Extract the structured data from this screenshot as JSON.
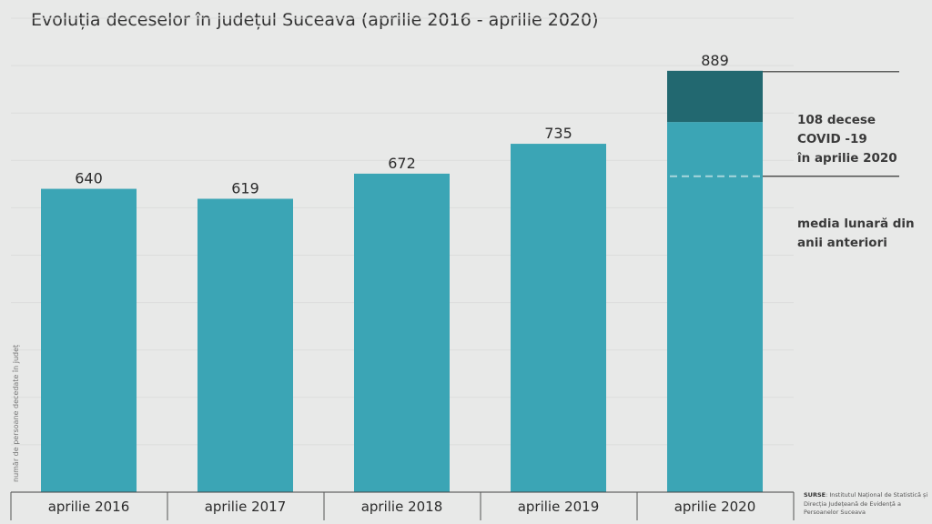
{
  "title": "Evoluția deceselor în județul Suceava (aprilie 2016 - aprilie 2020)",
  "chart_data": {
    "type": "bar",
    "categories": [
      "aprilie 2016",
      "aprilie 2017",
      "aprilie 2018",
      "aprilie 2019",
      "aprilie 2020"
    ],
    "values": [
      640,
      619,
      672,
      735,
      889
    ],
    "stacked_segment": {
      "category": "aprilie 2020",
      "value": 108,
      "label": "108 decese COVID -19 în aprilie 2020"
    },
    "reference_line": {
      "value": 666.5,
      "label": "media lunară din anii anteriori",
      "style": "dashed"
    },
    "ylabel": "număr de persoane decedate în județ",
    "ylim": [
      0,
      1000
    ],
    "grid": true,
    "colors": {
      "bar": "#3ba5b5",
      "covid": "#226870",
      "background": "#e8e9e8",
      "mean_line": "#a8d6dc"
    }
  },
  "annotations": {
    "covid_lines": [
      "108 decese",
      "COVID -19",
      "în aprilie 2020"
    ],
    "mean_lines": [
      "media lunară din",
      "anii anteriori"
    ]
  },
  "sources": {
    "label": "SURSE",
    "text": ": Institutul Național de Statistică și Direcția Județeană de Evidență a Persoanelor Suceava"
  }
}
